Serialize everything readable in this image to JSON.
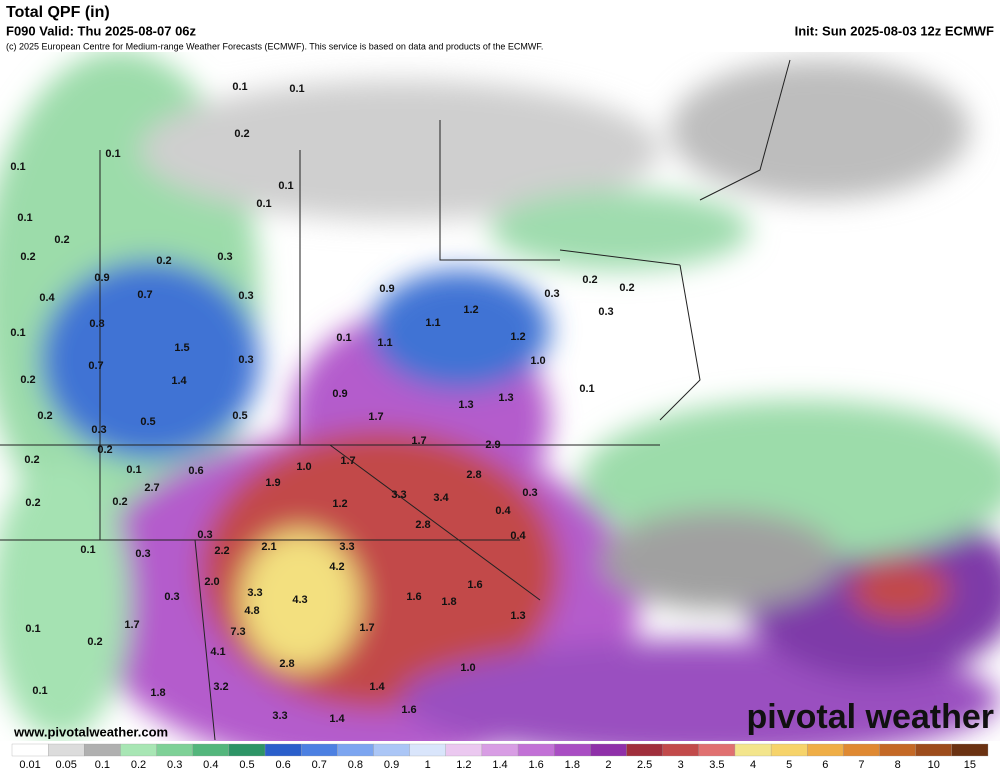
{
  "header": {
    "title": "Total QPF (in)",
    "valid": "F090 Valid: Thu 2025-08-07 06z",
    "init": "Init: Sun 2025-08-03 12z ECMWF",
    "copyright": "(c) 2025 European Centre for Medium-range Weather Forecasts (ECMWF). This service is based on data and products of the ECMWF."
  },
  "map": {
    "labels": [
      "0.1",
      "0.1",
      "0.2",
      "0.1",
      "0.1",
      "0.1",
      "0.1",
      "0.1",
      "0.2",
      "0.2",
      "0.2",
      "0.3",
      "0.9",
      "0.7",
      "0.4",
      "0.3",
      "0.9",
      "0.8",
      "0.1",
      "1.5",
      "0.1",
      "1.1",
      "1.1",
      "1.2",
      "1.2",
      "0.3",
      "0.2",
      "0.2",
      "0.3",
      "1.0",
      "0.7",
      "0.3",
      "1.4",
      "0.2",
      "0.1",
      "0.9",
      "1.3",
      "1.3",
      "1.7",
      "0.2",
      "0.5",
      "0.5",
      "0.3",
      "1.7",
      "2.9",
      "0.2",
      "0.2",
      "0.1",
      "0.6",
      "1.0",
      "1.7",
      "2.8",
      "1.9",
      "2.7",
      "0.2",
      "0.2",
      "0.3",
      "1.2",
      "3.3",
      "3.4",
      "0.4",
      "2.8",
      "0.4",
      "0.3",
      "0.1",
      "2.2",
      "2.1",
      "3.3",
      "0.3",
      "4.2",
      "2.0",
      "3.3",
      "4.3",
      "1.6",
      "0.3",
      "1.6",
      "1.8",
      "4.8",
      "1.3",
      "1.7",
      "0.1",
      "7.3",
      "1.7",
      "0.2",
      "4.1",
      "2.8",
      "1.0",
      "1.8",
      "3.2",
      "1.4",
      "0.1",
      "1.6",
      "3.3",
      "1.4"
    ]
  },
  "colorbar": {
    "labels": [
      "0.01",
      "0.05",
      "0.1",
      "0.2",
      "0.3",
      "0.4",
      "0.5",
      "0.6",
      "0.7",
      "0.8",
      "0.9",
      "1",
      "1.2",
      "1.4",
      "1.6",
      "1.8",
      "2",
      "2.5",
      "3",
      "3.5",
      "4",
      "5",
      "6",
      "7",
      "8",
      "10",
      "15"
    ],
    "colors": [
      "#ffffff",
      "#dcdcdc",
      "#b0b0b0",
      "#a8e6b4",
      "#7fd197",
      "#54b67c",
      "#2e9466",
      "#2b5fcb",
      "#4c80e2",
      "#7ca5f0",
      "#abc6f6",
      "#d9e5fb",
      "#ebc8f0",
      "#d89de4",
      "#c271d6",
      "#a94dc3",
      "#8f30a9",
      "#a02f3c",
      "#c24a4a",
      "#e07070",
      "#f3e58c",
      "#f6d36a",
      "#efae47",
      "#df8932",
      "#c46926",
      "#9d4c1c",
      "#6b3212"
    ]
  },
  "footer": {
    "website": "www.pivotalweather.com",
    "logo": "pivotal weather"
  }
}
